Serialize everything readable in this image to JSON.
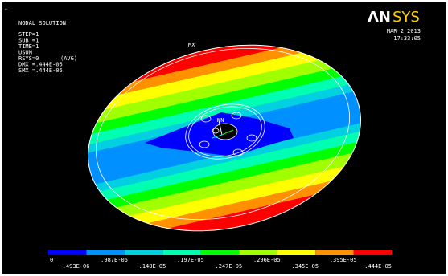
{
  "header": {
    "window_number": "1",
    "title": "NODAL SOLUTION",
    "info": [
      "STEP=1",
      "SUB =1",
      "TIME=1",
      "USUM",
      "RSYS=0",
      "DMX =.444E-05",
      "SMX =.444E-05"
    ],
    "avg": "(AVG)"
  },
  "logo": {
    "left": "ΛN",
    "right": "SYS"
  },
  "timestamp": {
    "date": "MAR  2 2013",
    "time": "17:33:05"
  },
  "model": {
    "max_label": "MX",
    "min_label": "MN"
  },
  "legend": {
    "colors": [
      "#0000ff",
      "#0090ff",
      "#00d0e0",
      "#00ffb0",
      "#00ff00",
      "#a0ff00",
      "#ffff00",
      "#ff9000",
      "#ff0000"
    ],
    "labels": [
      "0",
      ".493E-06",
      ".987E-06",
      ".148E-05",
      ".197E-05",
      ".247E-05",
      ".296E-05",
      ".345E-05",
      ".395E-05",
      ".444E-05"
    ]
  }
}
